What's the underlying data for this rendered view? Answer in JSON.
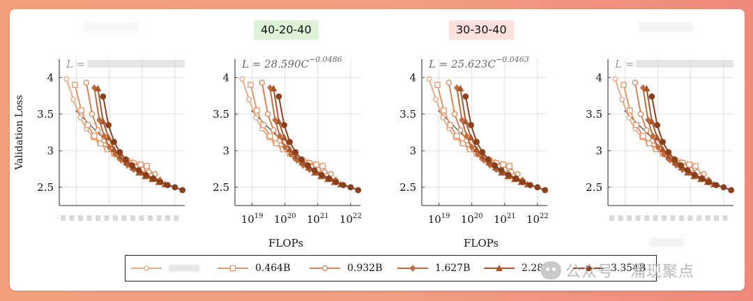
{
  "panel_titles": [
    "",
    "40-20-40",
    "30-30-40",
    ""
  ],
  "equations": [
    {
      "text": "",
      "visible": false
    },
    {
      "text": "L = 28.590C",
      "exponent": "−0.0486"
    },
    {
      "text": "L = 25.623C",
      "exponent": "−0.0463"
    },
    {
      "text": "",
      "visible": false
    }
  ],
  "ylabel": "Validation Loss",
  "xlabel": "FLOPs",
  "colors": {
    "series": [
      "#ecaa82",
      "#e0956a",
      "#d68454",
      "#c26a38",
      "#a9552a",
      "#8a3f1d"
    ],
    "title_green": "#dcf3d6",
    "title_pink": "#fbe0dc",
    "fit_line": "#222222"
  },
  "watermark": {
    "text": "公众号 · 涌现聚点"
  },
  "chart_data": [
    {
      "type": "line",
      "title": "",
      "ylabel": "Validation Loss",
      "xlabel": "",
      "x_scale": "log",
      "ylim": [
        2.25,
        4.25
      ],
      "yticks": [
        2.5,
        3,
        3.5,
        4
      ],
      "note": "panel text blurred in source"
    },
    {
      "type": "line",
      "title": "40-20-40",
      "fit": {
        "a": 28.59,
        "b": -0.0486
      },
      "xlabel": "FLOPs",
      "ylabel": "",
      "x_scale": "log",
      "xlim": [
        3e+18,
        2e+22
      ],
      "ylim": [
        2.25,
        4.25
      ],
      "xticks": [
        1e+19,
        1e+20,
        1e+21,
        1e+22
      ],
      "xtick_labels": [
        "10^19",
        "10^20",
        "10^21",
        "10^22"
      ],
      "yticks": [
        2.5,
        3,
        3.5,
        4
      ],
      "grid": true,
      "series": [
        {
          "name": "",
          "marker": "pentagon",
          "x": [
            5e+18,
            8e+18,
            1.3e+19,
            2e+19,
            3.2e+19,
            5e+19,
            8e+19,
            1.3e+20,
            2e+20,
            3.2e+20,
            5e+20,
            8e+20
          ],
          "y": [
            3.98,
            3.7,
            3.45,
            3.3,
            3.18,
            3.1,
            3.03,
            2.98,
            2.93,
            2.89,
            2.85,
            2.82
          ]
        },
        {
          "name": "0.464B",
          "marker": "square",
          "x": [
            9e+18,
            1.4e+19,
            2.2e+19,
            3.5e+19,
            5.5e+19,
            9e+19,
            1.4e+20,
            2.2e+20,
            3.5e+20,
            5.5e+20,
            9e+20,
            1.4e+21
          ],
          "y": [
            3.9,
            3.55,
            3.35,
            3.2,
            3.1,
            3.02,
            2.96,
            2.9,
            2.86,
            2.83,
            2.81,
            2.79
          ]
        },
        {
          "name": "0.932B",
          "marker": "circle",
          "x": [
            2e+19,
            3e+19,
            4.5e+19,
            7e+19,
            1.1e+20,
            1.7e+20,
            2.6e+20,
            4e+20,
            6.3e+20,
            1e+21,
            1.6e+21,
            2.5e+21
          ],
          "y": [
            3.93,
            3.5,
            3.28,
            3.14,
            3.03,
            2.95,
            2.88,
            2.83,
            2.78,
            2.74,
            2.71,
            2.68
          ]
        },
        {
          "name": "1.627B",
          "marker": "diamond",
          "x": [
            3.5e+19,
            5e+19,
            7e+19,
            1e+20,
            1.5e+20,
            2.3e+20,
            3.6e+20,
            5.6e+20,
            9e+20,
            1.4e+21,
            2.2e+21,
            3.5e+21
          ],
          "y": [
            3.86,
            3.42,
            3.2,
            3.05,
            2.95,
            2.87,
            2.8,
            2.74,
            2.7,
            2.66,
            2.63,
            2.6
          ]
        },
        {
          "name": "2.280B",
          "marker": "triangle",
          "x": [
            4.5e+19,
            6.5e+19,
            9.5e+19,
            1.4e+20,
            2.1e+20,
            3.3e+20,
            5.2e+20,
            8e+20,
            1.25e+21,
            2e+21,
            3.2e+21,
            5e+21
          ],
          "y": [
            3.85,
            3.4,
            3.18,
            3.02,
            2.92,
            2.84,
            2.77,
            2.7,
            2.65,
            2.61,
            2.57,
            2.54
          ]
        },
        {
          "name": "3.354B",
          "marker": "filled-circle",
          "x": [
            6.5e+19,
            9.5e+19,
            1.4e+20,
            2.1e+20,
            3.2e+20,
            5e+20,
            8e+20,
            1.3e+21,
            2.2e+21,
            3.6e+21,
            6e+21,
            1e+22,
            1.7e+22
          ],
          "y": [
            3.74,
            3.35,
            3.12,
            2.98,
            2.88,
            2.8,
            2.73,
            2.67,
            2.62,
            2.57,
            2.53,
            2.5,
            2.46
          ]
        }
      ]
    },
    {
      "type": "line",
      "title": "30-30-40",
      "fit": {
        "a": 25.623,
        "b": -0.0463
      },
      "xlabel": "FLOPs",
      "ylabel": "",
      "x_scale": "log",
      "xlim": [
        3e+18,
        2e+22
      ],
      "ylim": [
        2.25,
        4.25
      ],
      "xticks": [
        1e+19,
        1e+20,
        1e+21,
        1e+22
      ],
      "xtick_labels": [
        "10^19",
        "10^20",
        "10^21",
        "10^22"
      ],
      "yticks": [
        2.5,
        3,
        3.5,
        4
      ],
      "grid": true,
      "series": [
        {
          "name": "",
          "marker": "pentagon",
          "x": [
            5e+18,
            8e+18,
            1.3e+19,
            2e+19,
            3.2e+19,
            5e+19,
            8e+19,
            1.3e+20,
            2e+20,
            3.2e+20,
            5e+20,
            8e+20
          ],
          "y": [
            3.98,
            3.7,
            3.45,
            3.3,
            3.18,
            3.1,
            3.03,
            2.98,
            2.93,
            2.89,
            2.85,
            2.82
          ]
        },
        {
          "name": "0.464B",
          "marker": "square",
          "x": [
            9e+18,
            1.4e+19,
            2.2e+19,
            3.5e+19,
            5.5e+19,
            9e+19,
            1.4e+20,
            2.2e+20,
            3.5e+20,
            5.5e+20,
            9e+20,
            1.4e+21
          ],
          "y": [
            3.9,
            3.55,
            3.35,
            3.2,
            3.1,
            3.02,
            2.96,
            2.9,
            2.86,
            2.83,
            2.81,
            2.79
          ]
        },
        {
          "name": "0.932B",
          "marker": "circle",
          "x": [
            2e+19,
            3e+19,
            4.5e+19,
            7e+19,
            1.1e+20,
            1.7e+20,
            2.6e+20,
            4e+20,
            6.3e+20,
            1e+21,
            1.6e+21,
            2.5e+21
          ],
          "y": [
            3.93,
            3.5,
            3.28,
            3.14,
            3.03,
            2.95,
            2.88,
            2.83,
            2.78,
            2.74,
            2.71,
            2.68
          ]
        },
        {
          "name": "1.627B",
          "marker": "diamond",
          "x": [
            3.5e+19,
            5e+19,
            7e+19,
            1e+20,
            1.5e+20,
            2.3e+20,
            3.6e+20,
            5.6e+20,
            9e+20,
            1.4e+21,
            2.2e+21,
            3.5e+21
          ],
          "y": [
            3.86,
            3.42,
            3.2,
            3.05,
            2.95,
            2.87,
            2.8,
            2.74,
            2.7,
            2.66,
            2.63,
            2.6
          ]
        },
        {
          "name": "2.280B",
          "marker": "triangle",
          "x": [
            4.5e+19,
            6.5e+19,
            9.5e+19,
            1.4e+20,
            2.1e+20,
            3.3e+20,
            5.2e+20,
            8e+20,
            1.25e+21,
            2e+21,
            3.2e+21,
            5e+21
          ],
          "y": [
            3.85,
            3.4,
            3.18,
            3.02,
            2.92,
            2.84,
            2.77,
            2.7,
            2.65,
            2.61,
            2.57,
            2.54
          ]
        },
        {
          "name": "3.354B",
          "marker": "filled-circle",
          "x": [
            6.5e+19,
            9.5e+19,
            1.4e+20,
            2.1e+20,
            3.2e+20,
            5e+20,
            8e+20,
            1.3e+21,
            2.2e+21,
            3.6e+21,
            6e+21,
            1e+22,
            1.7e+22
          ],
          "y": [
            3.74,
            3.35,
            3.12,
            2.98,
            2.88,
            2.8,
            2.73,
            2.67,
            2.62,
            2.57,
            2.53,
            2.5,
            2.46
          ]
        }
      ]
    },
    {
      "type": "line",
      "title": "",
      "ylabel": "",
      "xlabel": "",
      "x_scale": "log",
      "ylim": [
        2.25,
        4.25
      ],
      "yticks": [
        2.5,
        3,
        3.5,
        4
      ],
      "note": "panel text blurred in source"
    }
  ],
  "legend": [
    {
      "label": "",
      "marker": "pentagon"
    },
    {
      "label": "0.464B",
      "marker": "square"
    },
    {
      "label": "0.932B",
      "marker": "circle"
    },
    {
      "label": "1.627B",
      "marker": "diamond"
    },
    {
      "label": "2.280B",
      "marker": "triangle"
    },
    {
      "label": "3.354B",
      "marker": "filled-circle"
    }
  ]
}
